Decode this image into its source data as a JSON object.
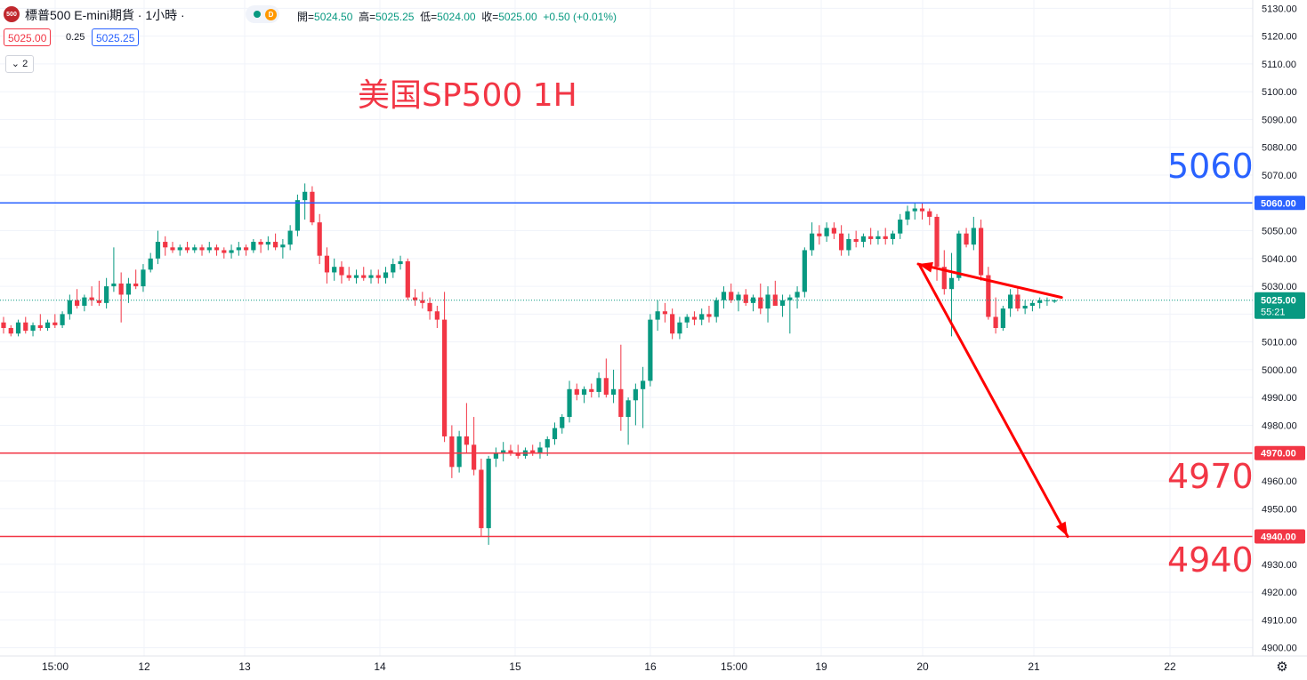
{
  "header": {
    "symbol_badge": "500",
    "title": "標普500 E-mini期貨 · 1小時 ·",
    "status_letter": "D",
    "ohlc": [
      {
        "label": "開=",
        "value": "5024.50"
      },
      {
        "label": "高=",
        "value": "5025.25"
      },
      {
        "label": "低=",
        "value": "5024.00"
      },
      {
        "label": "收=",
        "value": "5025.00"
      }
    ],
    "change": "+0.50 (+0.01%)",
    "bid": "5025.00",
    "spread": "0.25",
    "ask": "5025.25",
    "indicators_toggle": "2"
  },
  "annotations": {
    "title": "美国SP500 1H",
    "level_high": "5060",
    "level_mid": "4970",
    "level_low": "4940"
  },
  "colors": {
    "up": "#089981",
    "down": "#f23645",
    "resistance": "#2962ff",
    "support": "#f23645",
    "last_price": "#089981",
    "arrow": "#ff0000"
  },
  "chart_data": {
    "type": "candlestick",
    "title": "美国SP500 1H",
    "ylim": [
      4897,
      5133
    ],
    "y_ticks": [
      "5130.00",
      "5120.00",
      "5110.00",
      "5100.00",
      "5090.00",
      "5080.00",
      "5070.00",
      "5060.00",
      "5050.00",
      "5040.00",
      "5030.00",
      "5020.00",
      "5010.00",
      "5000.00",
      "4990.00",
      "4980.00",
      "4970.00",
      "4960.00",
      "4950.00",
      "4940.00",
      "4930.00",
      "4920.00",
      "4910.00",
      "4900.00"
    ],
    "x_ticks": [
      "15:00",
      "12",
      "13",
      "14",
      "15",
      "16",
      "15:00",
      "19",
      "20",
      "21",
      "22"
    ],
    "horizontal_levels": [
      {
        "price": 5060,
        "label": "5060.00",
        "color": "#2962ff"
      },
      {
        "price": 4970,
        "label": "4970.00",
        "color": "#f23645"
      },
      {
        "price": 4940,
        "label": "4940.00",
        "color": "#f23645"
      }
    ],
    "last_price": {
      "label": "5025.00",
      "countdown": "55:21",
      "price": 5025
    },
    "forecast_path": [
      {
        "bar": 0,
        "price": 5026
      },
      {
        "bar": 1,
        "price": 5038
      },
      {
        "bar": 2,
        "price": 4940
      }
    ],
    "candles": [
      [
        5017,
        5019,
        5013,
        5015
      ],
      [
        5015,
        5016,
        5012,
        5013
      ],
      [
        5013,
        5018,
        5012,
        5017
      ],
      [
        5017,
        5019,
        5013,
        5014
      ],
      [
        5014,
        5017,
        5012,
        5016
      ],
      [
        5016,
        5020,
        5014,
        5015
      ],
      [
        5015,
        5018,
        5014,
        5017
      ],
      [
        5017,
        5020,
        5015,
        5016
      ],
      [
        5016,
        5021,
        5015,
        5020
      ],
      [
        5020,
        5027,
        5018,
        5025
      ],
      [
        5025,
        5029,
        5022,
        5023
      ],
      [
        5023,
        5027,
        5021,
        5026
      ],
      [
        5026,
        5030,
        5023,
        5025
      ],
      [
        5025,
        5032,
        5023,
        5024
      ],
      [
        5024,
        5033,
        5022,
        5030
      ],
      [
        5030,
        5044,
        5028,
        5031
      ],
      [
        5031,
        5035,
        5017,
        5027
      ],
      [
        5027,
        5033,
        5024,
        5031
      ],
      [
        5031,
        5036,
        5029,
        5030
      ],
      [
        5030,
        5038,
        5028,
        5036
      ],
      [
        5036,
        5042,
        5035,
        5040
      ],
      [
        5040,
        5050,
        5038,
        5046
      ],
      [
        5046,
        5048,
        5041,
        5044
      ],
      [
        5044,
        5046,
        5042,
        5043
      ],
      [
        5043,
        5045,
        5041,
        5044
      ],
      [
        5044,
        5046,
        5042,
        5043
      ],
      [
        5043,
        5045,
        5042,
        5044
      ],
      [
        5044,
        5045,
        5041,
        5043
      ],
      [
        5043,
        5046,
        5042,
        5044
      ],
      [
        5044,
        5045,
        5041,
        5043
      ],
      [
        5043,
        5044,
        5040,
        5042
      ],
      [
        5042,
        5045,
        5040,
        5043
      ],
      [
        5043,
        5046,
        5041,
        5044
      ],
      [
        5044,
        5045,
        5041,
        5043
      ],
      [
        5043,
        5047,
        5042,
        5046
      ],
      [
        5046,
        5047,
        5042,
        5045
      ],
      [
        5045,
        5048,
        5043,
        5046
      ],
      [
        5046,
        5049,
        5043,
        5044
      ],
      [
        5044,
        5047,
        5040,
        5045
      ],
      [
        5045,
        5052,
        5043,
        5050
      ],
      [
        5050,
        5063,
        5048,
        5061
      ],
      [
        5061,
        5067,
        5054,
        5064
      ],
      [
        5064,
        5066,
        5052,
        5053
      ],
      [
        5053,
        5056,
        5038,
        5041
      ],
      [
        5041,
        5044,
        5031,
        5035
      ],
      [
        5035,
        5040,
        5032,
        5037
      ],
      [
        5037,
        5039,
        5031,
        5034
      ],
      [
        5034,
        5037,
        5032,
        5033
      ],
      [
        5033,
        5036,
        5031,
        5034
      ],
      [
        5034,
        5037,
        5032,
        5033
      ],
      [
        5033,
        5036,
        5031,
        5034
      ],
      [
        5034,
        5036,
        5031,
        5033
      ],
      [
        5033,
        5037,
        5031,
        5035
      ],
      [
        5035,
        5040,
        5033,
        5038
      ],
      [
        5038,
        5041,
        5036,
        5039
      ],
      [
        5039,
        5040,
        5025,
        5026
      ],
      [
        5026,
        5029,
        5023,
        5025
      ],
      [
        5025,
        5028,
        5022,
        5024
      ],
      [
        5024,
        5026,
        5018,
        5021
      ],
      [
        5021,
        5023,
        5015,
        5018
      ],
      [
        5018,
        5028,
        4974,
        4976
      ],
      [
        4976,
        4980,
        4961,
        4965
      ],
      [
        4965,
        4978,
        4963,
        4976
      ],
      [
        4976,
        4988,
        4970,
        4973
      ],
      [
        4973,
        4983,
        4962,
        4964
      ],
      [
        4964,
        4968,
        4940,
        4943
      ],
      [
        4943,
        4969,
        4937,
        4968
      ],
      [
        4968,
        4972,
        4965,
        4970
      ],
      [
        4970,
        4974,
        4967,
        4971
      ],
      [
        4971,
        4973,
        4969,
        4970
      ],
      [
        4970,
        4973,
        4968,
        4969
      ],
      [
        4969,
        4972,
        4968,
        4971
      ],
      [
        4971,
        4973,
        4969,
        4970
      ],
      [
        4970,
        4974,
        4968,
        4972
      ],
      [
        4972,
        4976,
        4969,
        4975
      ],
      [
        4975,
        4981,
        4973,
        4979
      ],
      [
        4979,
        4984,
        4977,
        4983
      ],
      [
        4983,
        4996,
        4981,
        4993
      ],
      [
        4993,
        4995,
        4989,
        4991
      ],
      [
        4991,
        4994,
        4988,
        4993
      ],
      [
        4993,
        4995,
        4990,
        4992
      ],
      [
        4992,
        4999,
        4990,
        4997
      ],
      [
        4997,
        5004,
        4990,
        4991
      ],
      [
        4991,
        5000,
        4988,
        4993
      ],
      [
        4993,
        5009,
        4978,
        4983
      ],
      [
        4983,
        4990,
        4973,
        4989
      ],
      [
        4989,
        4995,
        4980,
        4993
      ],
      [
        4993,
        5001,
        4979,
        4996
      ],
      [
        4996,
        5020,
        4994,
        5018
      ],
      [
        5018,
        5025,
        5014,
        5021
      ],
      [
        5021,
        5024,
        5017,
        5020
      ],
      [
        5020,
        5022,
        5011,
        5013
      ],
      [
        5013,
        5019,
        5011,
        5017
      ],
      [
        5017,
        5020,
        5015,
        5019
      ],
      [
        5019,
        5021,
        5016,
        5018
      ],
      [
        5018,
        5022,
        5016,
        5020
      ],
      [
        5020,
        5023,
        5017,
        5019
      ],
      [
        5019,
        5026,
        5017,
        5025
      ],
      [
        5025,
        5030,
        5022,
        5028
      ],
      [
        5028,
        5031,
        5024,
        5025
      ],
      [
        5025,
        5028,
        5021,
        5027
      ],
      [
        5027,
        5029,
        5023,
        5024
      ],
      [
        5024,
        5027,
        5021,
        5026
      ],
      [
        5026,
        5031,
        5020,
        5022
      ],
      [
        5022,
        5030,
        5017,
        5027
      ],
      [
        5027,
        5032,
        5025,
        5023
      ],
      [
        5023,
        5027,
        5019,
        5025
      ],
      [
        5025,
        5027,
        5013,
        5026
      ],
      [
        5026,
        5030,
        5022,
        5028
      ],
      [
        5028,
        5044,
        5026,
        5043
      ],
      [
        5043,
        5053,
        5041,
        5049
      ],
      [
        5049,
        5052,
        5045,
        5048
      ],
      [
        5048,
        5053,
        5046,
        5051
      ],
      [
        5051,
        5053,
        5047,
        5049
      ],
      [
        5049,
        5052,
        5041,
        5043
      ],
      [
        5043,
        5049,
        5041,
        5047
      ],
      [
        5047,
        5050,
        5044,
        5046
      ],
      [
        5046,
        5049,
        5044,
        5048
      ],
      [
        5048,
        5051,
        5045,
        5047
      ],
      [
        5047,
        5050,
        5045,
        5048
      ],
      [
        5048,
        5051,
        5045,
        5047
      ],
      [
        5047,
        5050,
        5045,
        5049
      ],
      [
        5049,
        5056,
        5047,
        5054
      ],
      [
        5054,
        5059,
        5052,
        5057
      ],
      [
        5057,
        5060,
        5054,
        5058
      ],
      [
        5058,
        5060,
        5054,
        5057
      ],
      [
        5057,
        5058,
        5052,
        5055
      ],
      [
        5055,
        5056,
        5032,
        5037
      ],
      [
        5037,
        5043,
        5027,
        5029
      ],
      [
        5029,
        5042,
        5012,
        5033
      ],
      [
        5033,
        5050,
        5032,
        5049
      ],
      [
        5049,
        5051,
        5044,
        5045
      ],
      [
        5045,
        5055,
        5043,
        5051
      ],
      [
        5051,
        5054,
        5032,
        5034
      ],
      [
        5034,
        5037,
        5018,
        5019
      ],
      [
        5019,
        5026,
        5013,
        5015
      ],
      [
        5015,
        5023,
        5014,
        5022
      ],
      [
        5022,
        5029,
        5019,
        5027
      ],
      [
        5027,
        5030,
        5021,
        5022
      ],
      [
        5022,
        5025,
        5020,
        5023
      ],
      [
        5023,
        5025,
        5021,
        5024
      ],
      [
        5024,
        5026,
        5022,
        5025
      ],
      [
        5025,
        5026,
        5023,
        5025
      ],
      [
        5024.5,
        5025.25,
        5024,
        5025
      ]
    ]
  }
}
